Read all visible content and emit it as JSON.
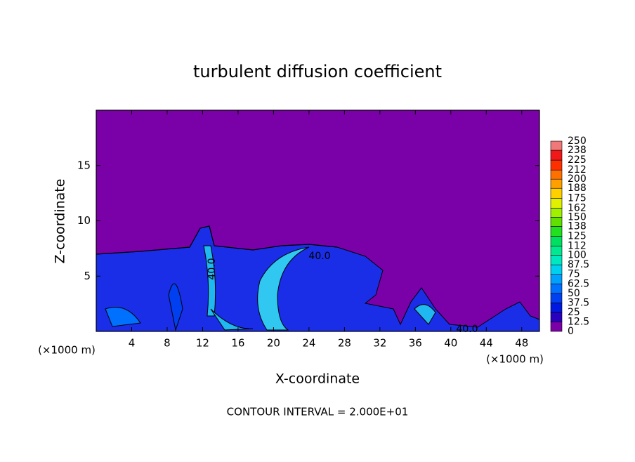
{
  "chart_data": {
    "type": "contour",
    "title": "turbulent diffusion coefficient",
    "xlabel": "X-coordinate",
    "ylabel": "Z-coordinate",
    "x_unit": "(×1000 m)",
    "xlim": [
      0,
      50
    ],
    "xticks": [
      4,
      8,
      12,
      16,
      20,
      24,
      28,
      32,
      36,
      40,
      44,
      48
    ],
    "ylim": [
      0,
      20
    ],
    "yticks": [
      5,
      10,
      15
    ],
    "contour_labels": [
      "40.0",
      "40.0",
      "40.0"
    ],
    "footer": "CONTOUR INTERVAL = 2.000E+01",
    "colorbar": {
      "levels": [
        0,
        12.5,
        25,
        37.5,
        50,
        62.5,
        75,
        87.5,
        100,
        112,
        125,
        138,
        150,
        162,
        175,
        188,
        200,
        212,
        225,
        238,
        250
      ],
      "colors": [
        "#7a00a8",
        "#2a00c0",
        "#0018e0",
        "#0040f0",
        "#0070ff",
        "#00a0ff",
        "#00d0f0",
        "#00e8c0",
        "#00e890",
        "#00e060",
        "#20e020",
        "#60e000",
        "#a0f000",
        "#e0f000",
        "#ffd000",
        "#ffa000",
        "#ff7000",
        "#ff3000",
        "#f01818",
        "#f07878"
      ]
    }
  }
}
